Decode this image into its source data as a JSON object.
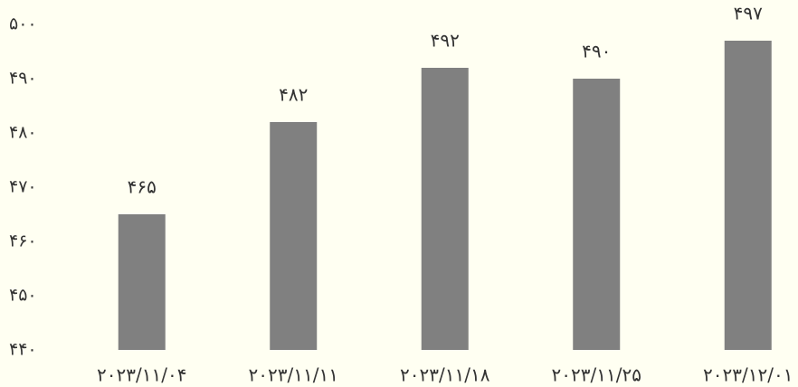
{
  "chart_data": {
    "type": "bar",
    "categories": [
      "۲۰۲۳/۱۱/۰۴",
      "۲۰۲۳/۱۱/۱۱",
      "۲۰۲۳/۱۱/۱۸",
      "۲۰۲۳/۱۱/۲۵",
      "۲۰۲۳/۱۲/۰۱"
    ],
    "values": [
      465,
      482,
      492,
      490,
      497
    ],
    "value_labels": [
      "۴۶۵",
      "۴۸۲",
      "۴۹۲",
      "۴۹۰",
      "۴۹۷"
    ],
    "ylim": [
      440,
      500
    ],
    "yticks": [
      440,
      450,
      460,
      470,
      480,
      490,
      500
    ],
    "ytick_labels": [
      "۴۴۰",
      "۴۵۰",
      "۴۶۰",
      "۴۷۰",
      "۴۸۰",
      "۴۹۰",
      "۵۰۰"
    ],
    "title": "",
    "xlabel": "",
    "ylabel": "",
    "grid": false,
    "colors": {
      "bar": "#808080",
      "text": "#333333",
      "background": "#fffff2"
    }
  }
}
